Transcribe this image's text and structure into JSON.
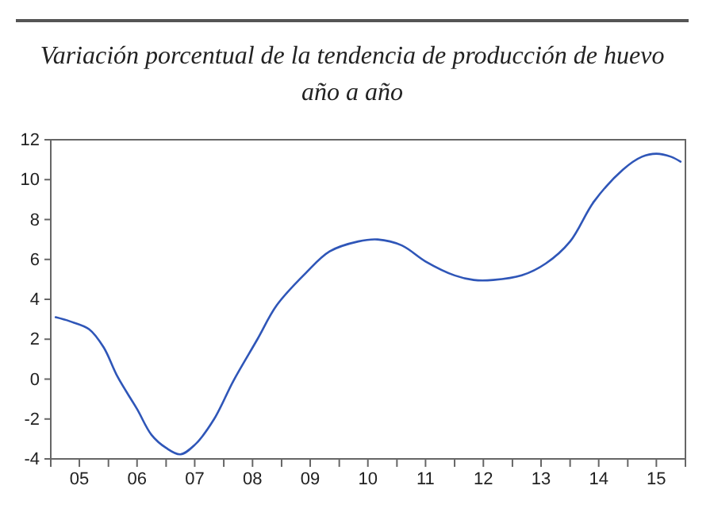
{
  "chart_data": {
    "type": "line",
    "title": "Variación porcentual de la tendencia de producción de huevo año a año",
    "x": [
      "2005-02",
      "2005-05",
      "2005-09",
      "2005-12",
      "2006-03",
      "2006-07",
      "2006-10",
      "2007-01",
      "2007-04",
      "2007-07",
      "2007-11",
      "2008-03",
      "2008-08",
      "2008-12",
      "2009-06",
      "2009-11",
      "2010-05",
      "2010-09",
      "2011-02",
      "2011-07",
      "2012-01",
      "2012-05",
      "2012-09",
      "2013-03",
      "2013-08",
      "2014-01",
      "2014-06",
      "2014-12",
      "2015-04",
      "2015-07",
      "2015-10",
      "2015-12"
    ],
    "series": [
      {
        "color": "#2f56b8",
        "values": [
          3.1,
          2.9,
          2.5,
          1.6,
          0.1,
          -1.5,
          -2.8,
          -3.45,
          -3.77,
          -3.3,
          -2.0,
          -0.1,
          2.0,
          3.7,
          5.3,
          6.4,
          6.9,
          7.0,
          6.7,
          5.9,
          5.2,
          4.97,
          4.97,
          5.2,
          5.8,
          6.9,
          8.9,
          10.5,
          11.15,
          11.3,
          11.15,
          10.9
        ]
      }
    ],
    "xlim": [
      "2005-01",
      "2016-01"
    ],
    "xticks": [
      {
        "value": "2005-01",
        "label": null
      },
      {
        "value": "2005-07",
        "label": "05"
      },
      {
        "value": "2006-01",
        "label": null
      },
      {
        "value": "2006-07",
        "label": "06"
      },
      {
        "value": "2007-01",
        "label": null
      },
      {
        "value": "2007-07",
        "label": "07"
      },
      {
        "value": "2008-01",
        "label": null
      },
      {
        "value": "2008-07",
        "label": "08"
      },
      {
        "value": "2009-01",
        "label": null
      },
      {
        "value": "2009-07",
        "label": "09"
      },
      {
        "value": "2010-01",
        "label": null
      },
      {
        "value": "2010-07",
        "label": "10"
      },
      {
        "value": "2011-01",
        "label": null
      },
      {
        "value": "2011-07",
        "label": "11"
      },
      {
        "value": "2012-01",
        "label": null
      },
      {
        "value": "2012-07",
        "label": "12"
      },
      {
        "value": "2013-01",
        "label": null
      },
      {
        "value": "2013-07",
        "label": "13"
      },
      {
        "value": "2014-01",
        "label": null
      },
      {
        "value": "2014-07",
        "label": "14"
      },
      {
        "value": "2015-01",
        "label": null
      },
      {
        "value": "2015-07",
        "label": "15"
      },
      {
        "value": "2016-01",
        "label": null
      }
    ],
    "ylim": [
      -4,
      12
    ],
    "yticks": [
      -4,
      -2,
      0,
      2,
      4,
      6,
      8,
      10,
      12
    ],
    "grid": false,
    "line_style": "solid",
    "marker": "none"
  }
}
